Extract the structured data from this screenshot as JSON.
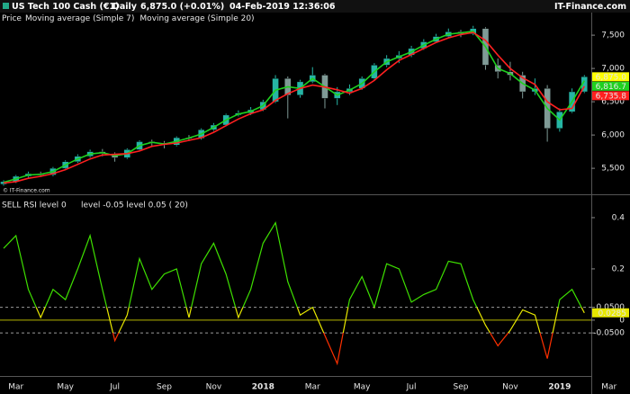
{
  "header": {
    "instrument": "US Tech 100 Cash (€1)",
    "interval": "Daily",
    "last": "6,875.0 (+0.01%)",
    "timestamp": "04-Feb-2019 12:36:06",
    "brand": "IT-Finance.com",
    "watermark": "© IT-Finance.com"
  },
  "chart_data": [
    {
      "type": "candlestick",
      "legend_label": "Price",
      "up_color": "#26b5a5",
      "down_color": "#7f9a96",
      "last_label_color": "#ffff00",
      "open": [
        5260,
        5300,
        5380,
        5420,
        5400,
        5500,
        5600,
        5680,
        5750,
        5720,
        5660,
        5780,
        5900,
        5880,
        5850,
        5960,
        5950,
        6080,
        6150,
        6300,
        6330,
        6380,
        6500,
        6850,
        6600,
        6800,
        6900,
        6550,
        6650,
        6700,
        6850,
        7050,
        7150,
        7200,
        7300,
        7400,
        7480,
        7550,
        7520,
        7600,
        7050,
        6950,
        6900,
        6650,
        6700,
        6100,
        6350,
        6650,
        null,
        null
      ],
      "high": [
        5320,
        5400,
        5450,
        5450,
        5520,
        5620,
        5710,
        5780,
        5790,
        5740,
        5800,
        5920,
        5930,
        5910,
        5980,
        6000,
        6100,
        6180,
        6320,
        6370,
        6420,
        6530,
        6900,
        6880,
        6830,
        7020,
        6920,
        6720,
        6760,
        6880,
        7080,
        7200,
        7260,
        7340,
        7440,
        7520,
        7600,
        7580,
        7640,
        7620,
        7150,
        7100,
        6950,
        6850,
        6750,
        6400,
        6700,
        6900,
        null,
        null
      ],
      "low": [
        5240,
        5280,
        5360,
        5370,
        5380,
        5480,
        5580,
        5660,
        5680,
        5600,
        5640,
        5760,
        5840,
        5800,
        5830,
        5910,
        5930,
        6060,
        6130,
        6280,
        6300,
        6360,
        6480,
        6250,
        6560,
        6780,
        6400,
        6450,
        6600,
        6680,
        6830,
        7020,
        7080,
        7170,
        7280,
        7380,
        7460,
        7470,
        7500,
        6980,
        6850,
        6820,
        6550,
        6600,
        5900,
        6050,
        6330,
        6630,
        null,
        null
      ],
      "close": [
        5300,
        5380,
        5420,
        5400,
        5500,
        5600,
        5680,
        5750,
        5720,
        5660,
        5780,
        5900,
        5880,
        5850,
        5960,
        5950,
        6080,
        6150,
        6300,
        6330,
        6380,
        6500,
        6850,
        6600,
        6800,
        6900,
        6550,
        6650,
        6700,
        6850,
        7050,
        7150,
        7200,
        7300,
        7400,
        7480,
        7550,
        7520,
        7600,
        7050,
        6950,
        6900,
        6650,
        6700,
        6100,
        6350,
        6650,
        6875,
        null,
        null
      ],
      "value_labels": [
        null,
        null,
        null,
        null,
        null,
        null,
        null,
        null,
        null,
        null,
        null,
        null,
        null,
        null,
        null,
        null,
        null,
        null,
        null,
        null,
        null,
        null,
        null,
        null,
        null,
        null,
        null,
        null,
        null,
        null,
        null,
        null,
        null,
        null,
        null,
        null,
        null,
        null,
        null,
        null,
        null,
        null,
        null,
        null,
        null,
        null,
        null,
        "6,875.0",
        null,
        null
      ],
      "series": [
        {
          "name": "Moving average (Simple 7)",
          "color": "#1fd01f",
          "values": [
            5290,
            5340,
            5400,
            5410,
            5450,
            5550,
            5640,
            5715,
            5735,
            5690,
            5720,
            5840,
            5890,
            5865,
            5905,
            5955,
            6015,
            6115,
            6225,
            6315,
            6355,
            6440,
            6675,
            6725,
            6700,
            6850,
            6725,
            6600,
            6675,
            6775,
            6950,
            7100,
            7175,
            7250,
            7350,
            7440,
            7515,
            7535,
            7560,
            7325,
            7000,
            6925,
            6775,
            6675,
            6400,
            6225,
            6500,
            6816.7,
            null,
            null
          ],
          "value_labels": [
            null,
            null,
            null,
            null,
            null,
            null,
            null,
            null,
            null,
            null,
            null,
            null,
            null,
            null,
            null,
            null,
            null,
            null,
            null,
            null,
            null,
            null,
            null,
            null,
            null,
            null,
            null,
            null,
            null,
            null,
            null,
            null,
            null,
            null,
            null,
            null,
            null,
            null,
            null,
            null,
            null,
            null,
            null,
            null,
            null,
            null,
            null,
            "6,816.7",
            null,
            null
          ]
        },
        {
          "name": "Moving average (Simple 20)",
          "color": "#ff2020",
          "values": [
            5280,
            5300,
            5350,
            5380,
            5420,
            5480,
            5560,
            5640,
            5700,
            5710,
            5720,
            5760,
            5830,
            5860,
            5880,
            5920,
            5960,
            6040,
            6140,
            6240,
            6320,
            6380,
            6520,
            6620,
            6700,
            6750,
            6720,
            6680,
            6630,
            6700,
            6820,
            6980,
            7120,
            7210,
            7300,
            7390,
            7460,
            7510,
            7540,
            7420,
            7200,
            7000,
            6860,
            6760,
            6500,
            6380,
            6400,
            6735.8,
            null,
            null
          ],
          "value_labels": [
            null,
            null,
            null,
            null,
            null,
            null,
            null,
            null,
            null,
            null,
            null,
            null,
            null,
            null,
            null,
            null,
            null,
            null,
            null,
            null,
            null,
            null,
            null,
            null,
            null,
            null,
            null,
            null,
            null,
            null,
            null,
            null,
            null,
            null,
            null,
            null,
            null,
            null,
            null,
            null,
            null,
            null,
            null,
            null,
            null,
            null,
            null,
            "6,735.8",
            null,
            null
          ]
        }
      ],
      "ylim": [
        5150,
        7650
      ],
      "yticks": [
        {
          "value": 5500,
          "label": "5,500"
        },
        {
          "value": 6000,
          "label": "6,000"
        },
        {
          "value": 6500,
          "label": "6,500"
        },
        {
          "value": 7000,
          "label": "7,000"
        },
        {
          "value": 7500,
          "label": "7,500"
        }
      ]
    },
    {
      "type": "line",
      "title": "SELL RSI level 0",
      "subtitle": "level -0.05 level 0.05 ( 20)",
      "categories": [
        null,
        "Mar",
        null,
        null,
        null,
        "May",
        null,
        null,
        null,
        "Jul",
        null,
        null,
        null,
        "Sep",
        null,
        null,
        null,
        "Nov",
        null,
        null,
        null,
        "2018",
        null,
        null,
        null,
        "Mar",
        null,
        null,
        null,
        "May",
        null,
        null,
        null,
        "Jul",
        null,
        null,
        null,
        "Sep",
        null,
        null,
        null,
        "Nov",
        null,
        null,
        null,
        "2019",
        null,
        null,
        null,
        "Mar"
      ],
      "values": [
        0.28,
        0.33,
        0.12,
        0.01,
        0.12,
        0.08,
        0.2,
        0.33,
        0.12,
        -0.08,
        0.02,
        0.24,
        0.12,
        0.18,
        0.2,
        0.01,
        0.22,
        0.3,
        0.18,
        0.01,
        0.12,
        0.3,
        0.38,
        0.15,
        0.02,
        0.05,
        -0.06,
        -0.17,
        0.08,
        0.17,
        0.05,
        0.22,
        0.2,
        0.07,
        0.1,
        0.12,
        0.23,
        0.22,
        0.08,
        -0.02,
        -0.1,
        -0.04,
        0.04,
        0.02,
        -0.15,
        0.08,
        0.12,
        0.0285,
        null,
        null
      ],
      "colors": {
        "above": "#3ee000",
        "between": "#e8e800",
        "below": "#ff3000"
      },
      "levels": [
        {
          "value": 0,
          "color": "#b4b400",
          "dashed": false
        },
        {
          "value": -0.05,
          "color": "#9a9a9a",
          "dashed": true
        },
        {
          "value": 0.05,
          "color": "#9a9a9a",
          "dashed": true
        }
      ],
      "last_label_color": "#e8e800",
      "ylim": [
        -0.19,
        0.47
      ],
      "yticks": [
        {
          "value": -0.05,
          "label": "-0.0500"
        },
        0,
        {
          "value": 0.05,
          "label": "0.0500"
        },
        0.2,
        0.4
      ]
    }
  ]
}
